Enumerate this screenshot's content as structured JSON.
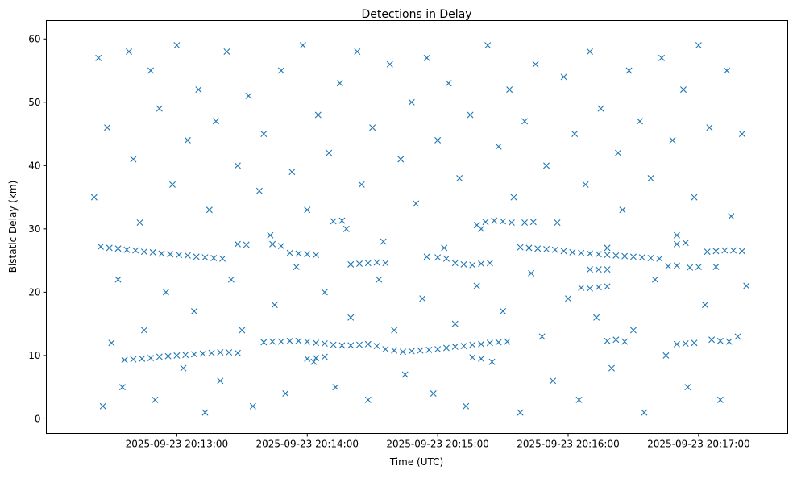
{
  "chart_data": {
    "type": "scatter",
    "title": "Detections in Delay",
    "xlabel": "Time (UTC)",
    "ylabel": "Bistatic Delay (km)",
    "x_units": "seconds after 2025-09-23 20:12:00 UTC",
    "xlim": [
      0,
      341
    ],
    "ylim": [
      -2.3,
      62.9
    ],
    "grid": false,
    "marker": "x",
    "color": "#1f77b4",
    "x_ticks": [
      {
        "value": 60,
        "label": "2025-09-23 20:13:00"
      },
      {
        "value": 120,
        "label": "2025-09-23 20:14:00"
      },
      {
        "value": 180,
        "label": "2025-09-23 20:15:00"
      },
      {
        "value": 240,
        "label": "2025-09-23 20:16:00"
      },
      {
        "value": 300,
        "label": "2025-09-23 20:17:00"
      }
    ],
    "y_ticks": [
      {
        "value": 0,
        "label": "0"
      },
      {
        "value": 10,
        "label": "10"
      },
      {
        "value": 20,
        "label": "20"
      },
      {
        "value": 30,
        "label": "30"
      },
      {
        "value": 40,
        "label": "40"
      },
      {
        "value": 50,
        "label": "50"
      },
      {
        "value": 60,
        "label": "60"
      }
    ],
    "points": [
      [
        22,
        35
      ],
      [
        24,
        57
      ],
      [
        26,
        2
      ],
      [
        28,
        46
      ],
      [
        30,
        12
      ],
      [
        33,
        22
      ],
      [
        35,
        5
      ],
      [
        38,
        58
      ],
      [
        40,
        41
      ],
      [
        43,
        31
      ],
      [
        45,
        14
      ],
      [
        48,
        55
      ],
      [
        50,
        3
      ],
      [
        52,
        49
      ],
      [
        55,
        20
      ],
      [
        58,
        37
      ],
      [
        60,
        59
      ],
      [
        63,
        8
      ],
      [
        65,
        44
      ],
      [
        68,
        17
      ],
      [
        70,
        52
      ],
      [
        73,
        1
      ],
      [
        75,
        33
      ],
      [
        78,
        47
      ],
      [
        80,
        6
      ],
      [
        83,
        58
      ],
      [
        85,
        22
      ],
      [
        88,
        40
      ],
      [
        90,
        14
      ],
      [
        93,
        51
      ],
      [
        95,
        2
      ],
      [
        98,
        36
      ],
      [
        100,
        45
      ],
      [
        103,
        29
      ],
      [
        105,
        18
      ],
      [
        108,
        55
      ],
      [
        110,
        4
      ],
      [
        113,
        39
      ],
      [
        115,
        24
      ],
      [
        118,
        59
      ],
      [
        120,
        33
      ],
      [
        123,
        9
      ],
      [
        125,
        48
      ],
      [
        128,
        20
      ],
      [
        130,
        42
      ],
      [
        133,
        5
      ],
      [
        135,
        53
      ],
      [
        138,
        30
      ],
      [
        140,
        16
      ],
      [
        143,
        58
      ],
      [
        145,
        37
      ],
      [
        148,
        3
      ],
      [
        150,
        46
      ],
      [
        153,
        22
      ],
      [
        155,
        28
      ],
      [
        158,
        56
      ],
      [
        160,
        14
      ],
      [
        163,
        41
      ],
      [
        165,
        7
      ],
      [
        168,
        50
      ],
      [
        170,
        34
      ],
      [
        173,
        19
      ],
      [
        175,
        57
      ],
      [
        178,
        4
      ],
      [
        180,
        44
      ],
      [
        183,
        27
      ],
      [
        185,
        53
      ],
      [
        188,
        15
      ],
      [
        190,
        38
      ],
      [
        193,
        2
      ],
      [
        195,
        48
      ],
      [
        198,
        21
      ],
      [
        200,
        30
      ],
      [
        203,
        59
      ],
      [
        205,
        9
      ],
      [
        208,
        43
      ],
      [
        210,
        17
      ],
      [
        213,
        52
      ],
      [
        215,
        35
      ],
      [
        218,
        1
      ],
      [
        220,
        47
      ],
      [
        223,
        23
      ],
      [
        225,
        56
      ],
      [
        228,
        13
      ],
      [
        230,
        40
      ],
      [
        233,
        6
      ],
      [
        235,
        31
      ],
      [
        238,
        54
      ],
      [
        240,
        19
      ],
      [
        243,
        45
      ],
      [
        245,
        3
      ],
      [
        248,
        37
      ],
      [
        250,
        58
      ],
      [
        253,
        16
      ],
      [
        255,
        49
      ],
      [
        258,
        27
      ],
      [
        260,
        8
      ],
      [
        263,
        42
      ],
      [
        265,
        33
      ],
      [
        268,
        55
      ],
      [
        270,
        14
      ],
      [
        273,
        47
      ],
      [
        275,
        1
      ],
      [
        278,
        38
      ],
      [
        280,
        22
      ],
      [
        283,
        57
      ],
      [
        285,
        10
      ],
      [
        288,
        44
      ],
      [
        290,
        29
      ],
      [
        293,
        52
      ],
      [
        295,
        5
      ],
      [
        298,
        35
      ],
      [
        300,
        59
      ],
      [
        303,
        18
      ],
      [
        305,
        46
      ],
      [
        308,
        24
      ],
      [
        310,
        3
      ],
      [
        313,
        55
      ],
      [
        315,
        32
      ],
      [
        318,
        13
      ],
      [
        320,
        45
      ],
      [
        322,
        21
      ],
      [
        25,
        27.2
      ],
      [
        29,
        27.0
      ],
      [
        33,
        26.9
      ],
      [
        37,
        26.7
      ],
      [
        41,
        26.6
      ],
      [
        45,
        26.4
      ],
      [
        49,
        26.3
      ],
      [
        53,
        26.1
      ],
      [
        57,
        26.0
      ],
      [
        61,
        25.9
      ],
      [
        65,
        25.8
      ],
      [
        69,
        25.6
      ],
      [
        73,
        25.5
      ],
      [
        77,
        25.4
      ],
      [
        81,
        25.3
      ],
      [
        36,
        9.3
      ],
      [
        40,
        9.4
      ],
      [
        44,
        9.5
      ],
      [
        48,
        9.6
      ],
      [
        52,
        9.8
      ],
      [
        56,
        9.9
      ],
      [
        60,
        10.0
      ],
      [
        64,
        10.1
      ],
      [
        68,
        10.2
      ],
      [
        72,
        10.3
      ],
      [
        76,
        10.4
      ],
      [
        80,
        10.5
      ],
      [
        84,
        10.5
      ],
      [
        88,
        10.4
      ],
      [
        100,
        12.1
      ],
      [
        104,
        12.2
      ],
      [
        108,
        12.2
      ],
      [
        112,
        12.3
      ],
      [
        116,
        12.3
      ],
      [
        120,
        12.2
      ],
      [
        124,
        12.0
      ],
      [
        128,
        11.9
      ],
      [
        132,
        11.7
      ],
      [
        136,
        11.6
      ],
      [
        140,
        11.6
      ],
      [
        144,
        11.7
      ],
      [
        148,
        11.8
      ],
      [
        152,
        11.5
      ],
      [
        156,
        11.0
      ],
      [
        160,
        10.8
      ],
      [
        164,
        10.6
      ],
      [
        168,
        10.7
      ],
      [
        172,
        10.8
      ],
      [
        176,
        10.9
      ],
      [
        180,
        11.0
      ],
      [
        184,
        11.2
      ],
      [
        188,
        11.4
      ],
      [
        192,
        11.5
      ],
      [
        196,
        11.7
      ],
      [
        200,
        11.8
      ],
      [
        204,
        12.0
      ],
      [
        208,
        12.1
      ],
      [
        212,
        12.2
      ],
      [
        120,
        9.5
      ],
      [
        124,
        9.6
      ],
      [
        128,
        9.8
      ],
      [
        196,
        9.7
      ],
      [
        200,
        9.5
      ],
      [
        218,
        27.1
      ],
      [
        222,
        27.0
      ],
      [
        226,
        26.9
      ],
      [
        230,
        26.8
      ],
      [
        234,
        26.7
      ],
      [
        238,
        26.5
      ],
      [
        242,
        26.3
      ],
      [
        246,
        26.2
      ],
      [
        250,
        26.1
      ],
      [
        254,
        26.0
      ],
      [
        258,
        25.9
      ],
      [
        262,
        25.8
      ],
      [
        266,
        25.7
      ],
      [
        270,
        25.6
      ],
      [
        274,
        25.5
      ],
      [
        278,
        25.4
      ],
      [
        282,
        25.3
      ],
      [
        290,
        27.6
      ],
      [
        294,
        27.8
      ],
      [
        304,
        26.4
      ],
      [
        308,
        26.5
      ],
      [
        312,
        26.6
      ],
      [
        316,
        26.6
      ],
      [
        320,
        26.5
      ],
      [
        140,
        24.4
      ],
      [
        144,
        24.5
      ],
      [
        148,
        24.6
      ],
      [
        152,
        24.7
      ],
      [
        156,
        24.6
      ],
      [
        175,
        25.6
      ],
      [
        180,
        25.5
      ],
      [
        184,
        25.3
      ],
      [
        188,
        24.6
      ],
      [
        192,
        24.4
      ],
      [
        196,
        24.3
      ],
      [
        200,
        24.5
      ],
      [
        204,
        24.6
      ],
      [
        250,
        23.6
      ],
      [
        254,
        23.6
      ],
      [
        258,
        23.6
      ],
      [
        286,
        24.1
      ],
      [
        290,
        24.2
      ],
      [
        296,
        23.9
      ],
      [
        300,
        24.0
      ],
      [
        132,
        31.2
      ],
      [
        136,
        31.3
      ],
      [
        198,
        30.6
      ],
      [
        202,
        31.1
      ],
      [
        206,
        31.3
      ],
      [
        210,
        31.2
      ],
      [
        214,
        31.0
      ],
      [
        220,
        31.0
      ],
      [
        224,
        31.1
      ],
      [
        88,
        27.6
      ],
      [
        92,
        27.5
      ],
      [
        104,
        27.6
      ],
      [
        108,
        27.3
      ],
      [
        112,
        26.2
      ],
      [
        116,
        26.1
      ],
      [
        120,
        26.0
      ],
      [
        124,
        25.9
      ],
      [
        246,
        20.7
      ],
      [
        250,
        20.6
      ],
      [
        254,
        20.8
      ],
      [
        258,
        20.9
      ],
      [
        258,
        12.3
      ],
      [
        262,
        12.5
      ],
      [
        266,
        12.2
      ],
      [
        290,
        11.8
      ],
      [
        294,
        11.9
      ],
      [
        298,
        12.0
      ],
      [
        306,
        12.5
      ],
      [
        310,
        12.3
      ],
      [
        314,
        12.2
      ]
    ]
  }
}
